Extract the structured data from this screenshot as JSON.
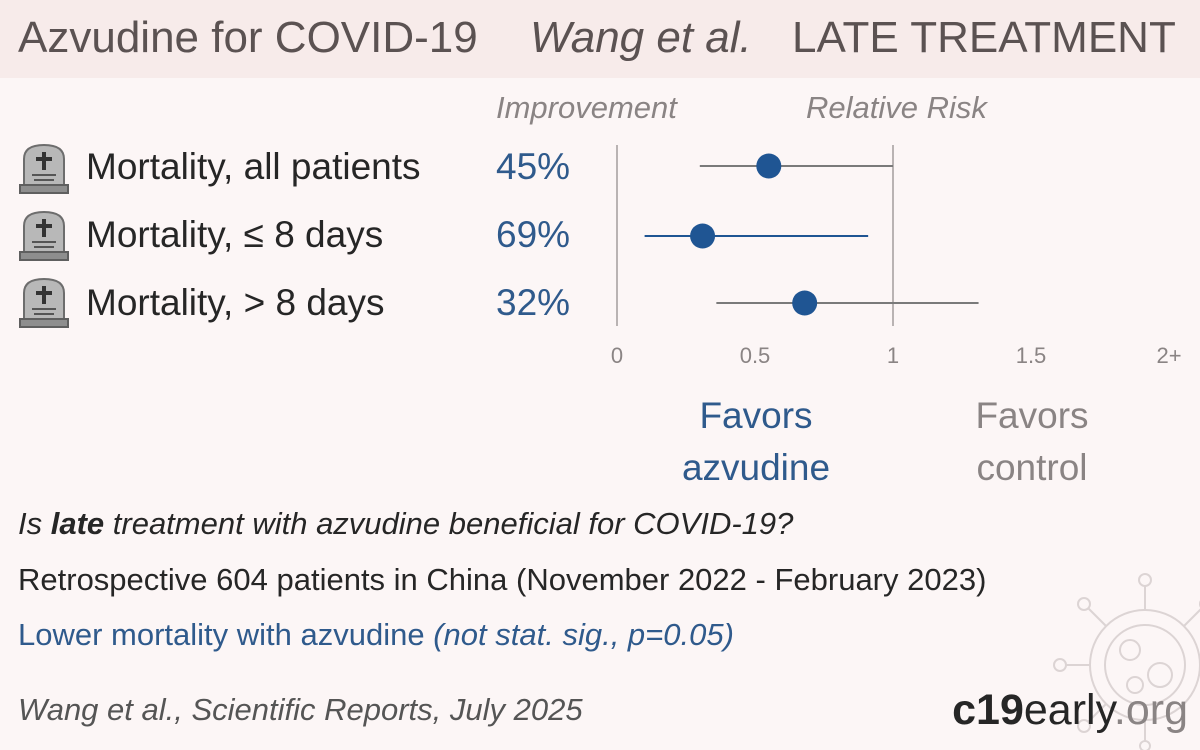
{
  "header": {
    "title": "Azvudine for COVID-19",
    "author": "Wang et al.",
    "stage": "LATE TREATMENT"
  },
  "columns": {
    "improvement": "Improvement",
    "relative_risk": "Relative Risk"
  },
  "chart_data": {
    "type": "forest",
    "xlim": [
      0,
      2
    ],
    "ticks": [
      {
        "value": 0,
        "label": "0"
      },
      {
        "value": 0.5,
        "label": "0.5"
      },
      {
        "value": 1,
        "label": "1"
      },
      {
        "value": 1.5,
        "label": "1.5"
      },
      {
        "value": 2,
        "label": "2+"
      }
    ],
    "reference_line": 1,
    "rows": [
      {
        "label": "Mortality, all patients",
        "improvement": "45%",
        "rr": 0.55,
        "ci": [
          0.3,
          1.0
        ],
        "color": "#1f5593",
        "ci_color": "#7a7a7a"
      },
      {
        "label": "Mortality, ≤ 8 days",
        "improvement": "69%",
        "rr": 0.31,
        "ci": [
          0.1,
          0.91
        ],
        "color": "#1f5593",
        "ci_color": "#1f5593"
      },
      {
        "label": "Mortality, > 8 days",
        "improvement": "32%",
        "rr": 0.68,
        "ci": [
          0.36,
          1.31
        ],
        "color": "#1f5593",
        "ci_color": "#7a7a7a"
      }
    ],
    "favors_treatment": [
      "Favors",
      "azvudine"
    ],
    "favors_control": [
      "Favors",
      "control"
    ]
  },
  "summary": {
    "question_pre": "Is ",
    "question_bold": "late",
    "question_post": " treatment with azvudine beneficial for COVID-19?",
    "design": "Retrospective 604 patients in China (November 2022 - February 2023)",
    "result_main": "Lower mortality with azvudine ",
    "result_detail": "(not stat. sig., p=0.05)",
    "citation": "Wang et al., Scientific Reports, July 2025"
  },
  "brand": {
    "bold": "c19",
    "light": "early",
    "tld": ".org"
  },
  "colors": {
    "accent": "#2f5a8c",
    "header_bg": "#f7ebea",
    "page_bg": "#fcf6f6"
  },
  "icons": {
    "row_icon": "tombstone-icon",
    "background": "virus-icon"
  }
}
